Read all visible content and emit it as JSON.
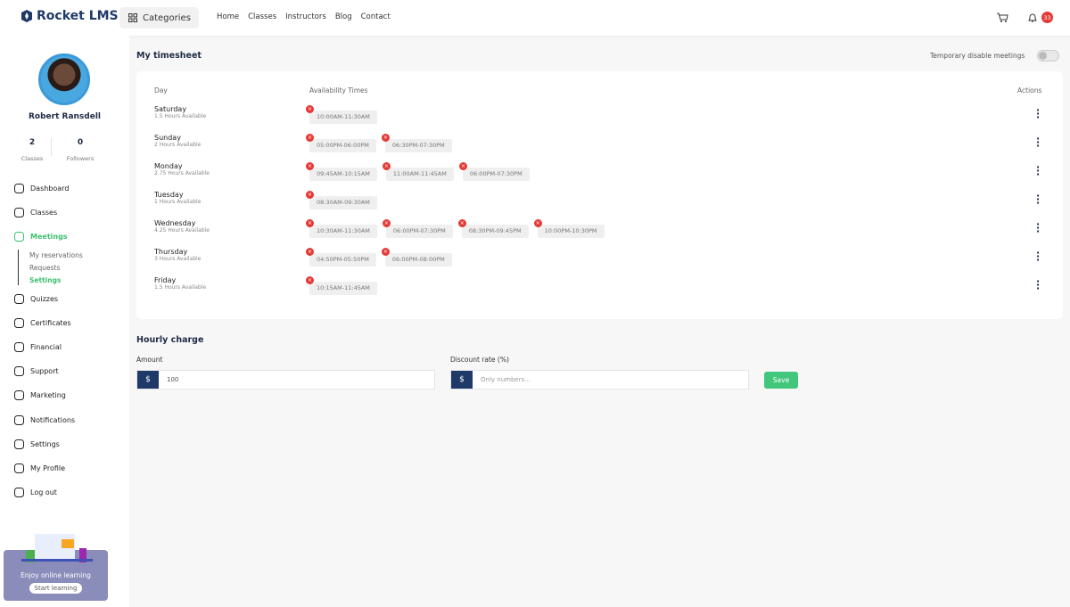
{
  "header": {
    "logo": "Rocket LMS",
    "categories": "Categories",
    "nav": [
      "Home",
      "Classes",
      "Instructors",
      "Blog",
      "Contact"
    ],
    "notification_count": "33"
  },
  "sidebar": {
    "user_name": "Robert Ransdell",
    "stats": [
      {
        "value": 2,
        "label": "Classes"
      },
      {
        "value": 0,
        "label": "Followers"
      }
    ],
    "menu": [
      "Dashboard",
      "Classes",
      "Meetings",
      "Quizzes",
      "Certificates",
      "Financial",
      "Support",
      "Marketing",
      "Notifications",
      "Settings",
      "My Profile",
      "Log out"
    ],
    "submenu": [
      "My reservations",
      "Requests",
      "Settings"
    ],
    "promo": {
      "text": "Enjoy online learning",
      "button": "Start learning"
    }
  },
  "timesheet": {
    "title": "My timesheet",
    "toggle_label": "Temporary disable meetings",
    "columns": [
      "Day",
      "Availability Times",
      "Actions"
    ],
    "rows": [
      {
        "day": "Saturday",
        "hours": "1.5 Hours Available",
        "times": [
          "10:00AM-11:30AM"
        ]
      },
      {
        "day": "Sunday",
        "hours": "2 Hours Available",
        "times": [
          "05:00PM-06:00PM",
          "06:30PM-07:30PM"
        ]
      },
      {
        "day": "Monday",
        "hours": "2.75 Hours Available",
        "times": [
          "09:45AM-10:15AM",
          "11:00AM-11:45AM",
          "06:00PM-07:30PM"
        ]
      },
      {
        "day": "Tuesday",
        "hours": "1 Hours Available",
        "times": [
          "08:30AM-09:30AM"
        ]
      },
      {
        "day": "Wednesday",
        "hours": "4.25 Hours Available",
        "times": [
          "10:30AM-11:30AM",
          "06:00PM-07:30PM",
          "08:30PM-09:45PM",
          "10:00PM-10:30PM"
        ]
      },
      {
        "day": "Thursday",
        "hours": "3 Hours Available",
        "times": [
          "04:50PM-05:50PM",
          "06:00PM-08:00PM"
        ]
      },
      {
        "day": "Friday",
        "hours": "1.5 Hours Available",
        "times": [
          "10:15AM-11:45AM"
        ]
      }
    ]
  },
  "hourly_charge": {
    "title": "Hourly charge",
    "amount_label": "Amount",
    "amount_prefix": "$",
    "amount_value": "100",
    "discount_label": "Discount rate (%)",
    "discount_prefix": "$",
    "discount_placeholder": "Only numbers...",
    "save": "Save"
  }
}
